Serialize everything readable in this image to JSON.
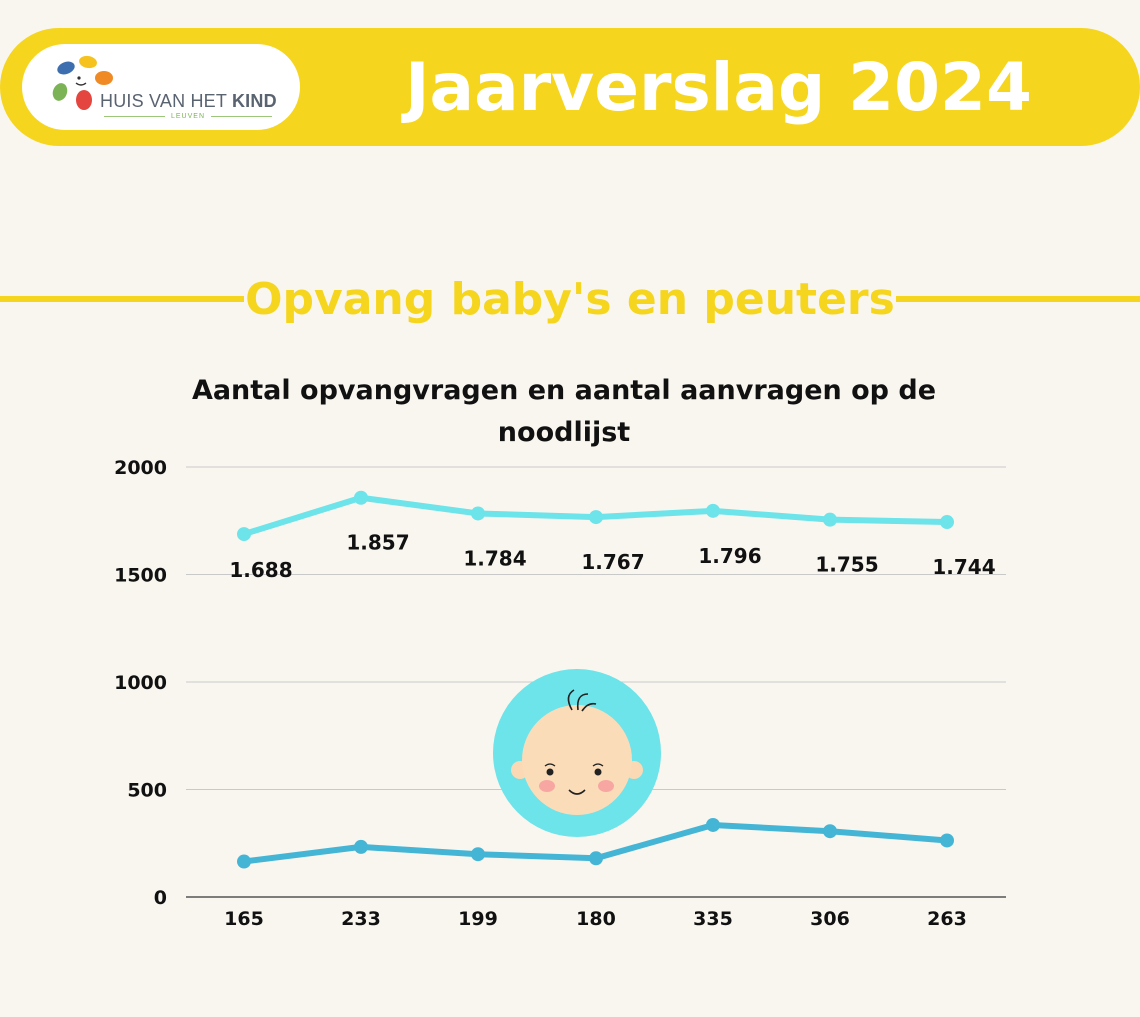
{
  "header": {
    "report_title": "Jaarverslag 2024",
    "logo": {
      "name_regular": "HUIS VAN HET ",
      "name_bold": "KIND",
      "city": "LEUVEN"
    }
  },
  "section": {
    "title": "Opvang baby's en peuters"
  },
  "colors": {
    "yellow": "#f5d51e",
    "series_top": "#6de3ea",
    "series_bottom": "#45b5d6"
  },
  "baby_icon": "baby-face-icon",
  "chart_data": {
    "type": "line",
    "title": "Aantal opvangvragen en aantal aanvragen op de noodlijst",
    "ylim": [
      0,
      2000
    ],
    "yticks": [
      0,
      500,
      1000,
      1500,
      2000
    ],
    "grid": true,
    "categories": [
      "165",
      "233",
      "199",
      "180",
      "335",
      "306",
      "263"
    ],
    "series": [
      {
        "values": [
          1688,
          1857,
          1784,
          1767,
          1796,
          1755,
          1744
        ],
        "labels": [
          "1.688",
          "1.857",
          "1.784",
          "1.767",
          "1.796",
          "1.755",
          "1.744"
        ],
        "color": "#6de3ea"
      },
      {
        "values": [
          165,
          233,
          199,
          180,
          335,
          306,
          263
        ],
        "color": "#45b5d6"
      }
    ]
  }
}
